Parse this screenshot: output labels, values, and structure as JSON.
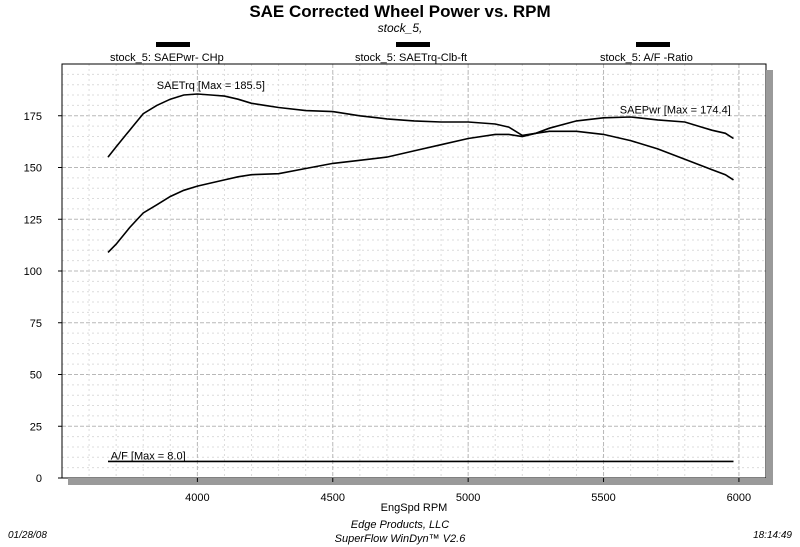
{
  "chart_data": {
    "type": "line",
    "title": "SAE Corrected Wheel Power vs. RPM",
    "subtitle": "stock_5,",
    "xlabel": "EngSpd  RPM",
    "ylabel": "",
    "xlim": [
      3500,
      6100
    ],
    "ylim": [
      0,
      200
    ],
    "x_ticks": [
      4000,
      4500,
      5000,
      5500,
      6000
    ],
    "y_ticks": [
      0,
      25,
      50,
      75,
      100,
      125,
      150,
      175
    ],
    "grid": true,
    "legend_position": "top",
    "legend": [
      {
        "label": "stock_5: SAEPwr- CHp"
      },
      {
        "label": "stock_5: SAETrq-Clb-ft"
      },
      {
        "label": "stock_5:  A/F  -Ratio"
      }
    ],
    "series": [
      {
        "name": "SAETrq",
        "annotation": "SAETrq [Max = 185.5]",
        "x": [
          3670,
          3700,
          3750,
          3800,
          3850,
          3900,
          3950,
          4000,
          4050,
          4100,
          4150,
          4200,
          4250,
          4300,
          4400,
          4500,
          4600,
          4700,
          4800,
          4900,
          5000,
          5100,
          5150,
          5200,
          5250,
          5300,
          5400,
          5500,
          5600,
          5700,
          5800,
          5900,
          5950,
          5980
        ],
        "values": [
          155,
          160,
          168,
          176,
          180,
          183,
          185,
          185.5,
          185,
          184.5,
          183,
          181,
          180,
          179,
          177.5,
          177,
          175,
          173.5,
          172.5,
          172,
          172,
          171,
          169.5,
          165.5,
          166.5,
          167.5,
          167.5,
          166,
          163,
          159,
          154,
          149,
          146.5,
          144
        ]
      },
      {
        "name": "SAEPwr",
        "annotation": "SAEPwr [Max = 174.4]",
        "x": [
          3670,
          3700,
          3750,
          3800,
          3850,
          3900,
          3950,
          4000,
          4050,
          4100,
          4150,
          4200,
          4300,
          4400,
          4500,
          4600,
          4700,
          4800,
          4900,
          5000,
          5100,
          5150,
          5200,
          5250,
          5300,
          5400,
          5500,
          5600,
          5700,
          5800,
          5850,
          5900,
          5950,
          5980
        ],
        "values": [
          109,
          113,
          121,
          128,
          132,
          136,
          139,
          141,
          142.5,
          144,
          145.5,
          146.5,
          147,
          149.5,
          152,
          153.5,
          155,
          158,
          161,
          164,
          166,
          166,
          165,
          166.5,
          169,
          172.5,
          174,
          174.4,
          173,
          172,
          170,
          168,
          166.5,
          164
        ]
      },
      {
        "name": "A/F",
        "annotation": "A/F   [Max = 8.0]",
        "x": [
          3670,
          5980
        ],
        "values": [
          8.0,
          8.0
        ]
      }
    ]
  },
  "footer": {
    "date": "01/28/08",
    "company": "Edge Products, LLC",
    "software": "SuperFlow WinDyn™ V2.6",
    "time": "18:14:49"
  }
}
